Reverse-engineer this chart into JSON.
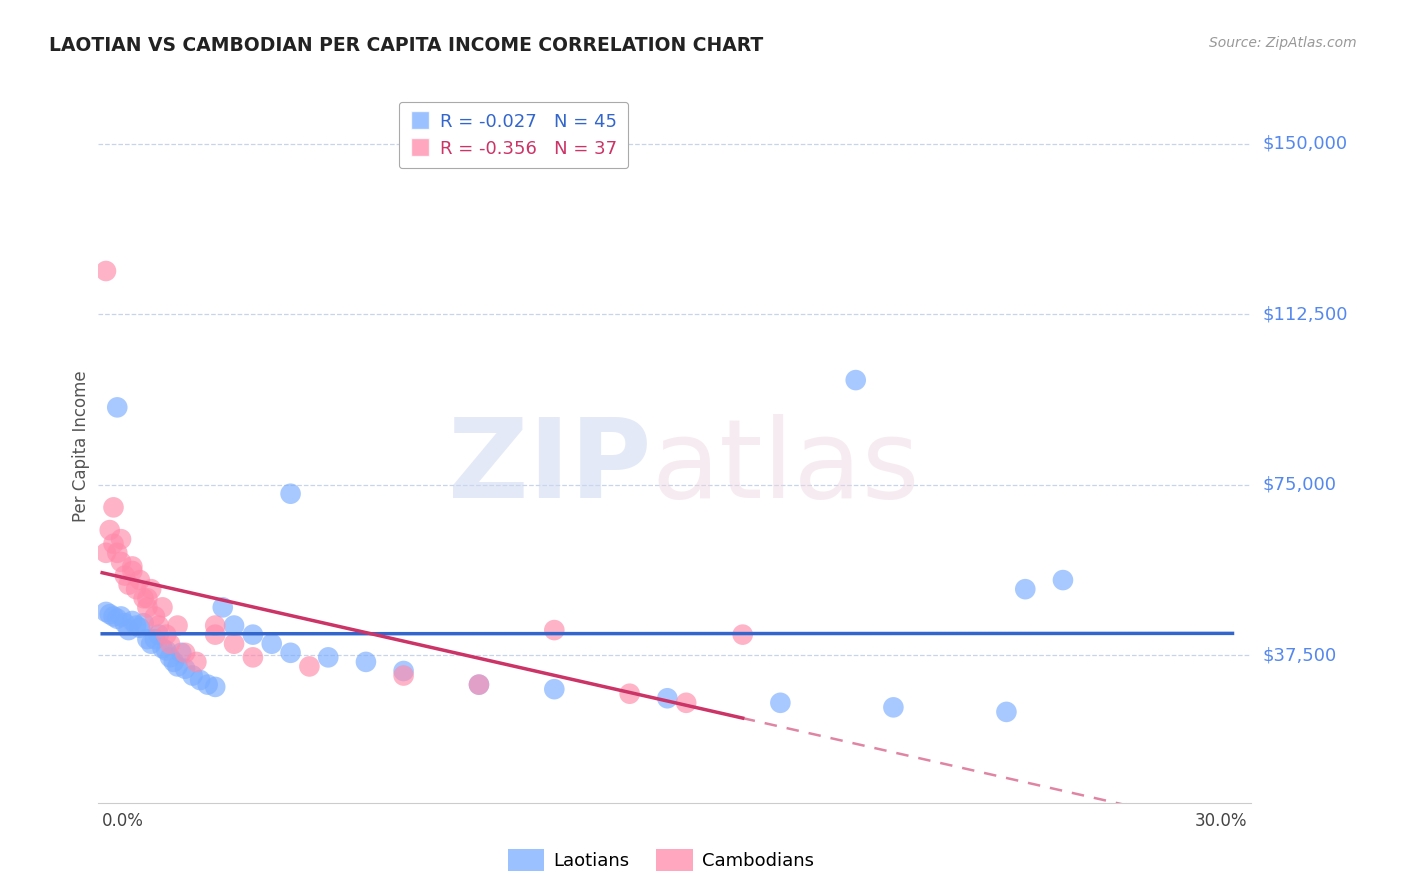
{
  "title": "LAOTIAN VS CAMBODIAN PER CAPITA INCOME CORRELATION CHART",
  "source": "Source: ZipAtlas.com",
  "ylabel": "Per Capita Income",
  "laotian_color": "#7aadff",
  "cambodian_color": "#ff8aaa",
  "laotian_R": -0.027,
  "laotian_N": 45,
  "cambodian_R": -0.356,
  "cambodian_N": 37,
  "laotian_line_color": "#3366cc",
  "cambodian_line_color": "#cc3366",
  "ymin": 5000,
  "ymax": 162000,
  "xmin": -0.001,
  "xmax": 0.305,
  "ytick_vals": [
    37500,
    75000,
    112500,
    150000
  ],
  "ytick_labels": [
    "$37,500",
    "$75,000",
    "$112,500",
    "$150,000"
  ],
  "lao_x": [
    0.001,
    0.002,
    0.003,
    0.004,
    0.005,
    0.006,
    0.007,
    0.008,
    0.009,
    0.01,
    0.011,
    0.012,
    0.013,
    0.014,
    0.015,
    0.016,
    0.017,
    0.018,
    0.019,
    0.02,
    0.021,
    0.022,
    0.024,
    0.026,
    0.028,
    0.03,
    0.032,
    0.035,
    0.04,
    0.045,
    0.05,
    0.06,
    0.07,
    0.08,
    0.1,
    0.12,
    0.15,
    0.18,
    0.21,
    0.24,
    0.004,
    0.05,
    0.2,
    0.245,
    0.255
  ],
  "lao_y": [
    47000,
    46500,
    46000,
    45500,
    46000,
    44500,
    43000,
    45000,
    44000,
    43500,
    44500,
    41000,
    40000,
    41000,
    42000,
    39000,
    38500,
    37000,
    36000,
    35000,
    38000,
    34500,
    33000,
    32000,
    31000,
    30500,
    48000,
    44000,
    42000,
    40000,
    38000,
    37000,
    36000,
    34000,
    31000,
    30000,
    28000,
    27000,
    26000,
    25000,
    92000,
    73000,
    98000,
    52000,
    54000
  ],
  "cam_x": [
    0.001,
    0.001,
    0.002,
    0.003,
    0.004,
    0.005,
    0.006,
    0.007,
    0.008,
    0.009,
    0.01,
    0.011,
    0.012,
    0.013,
    0.014,
    0.015,
    0.016,
    0.017,
    0.018,
    0.02,
    0.022,
    0.025,
    0.03,
    0.035,
    0.04,
    0.055,
    0.08,
    0.1,
    0.12,
    0.14,
    0.003,
    0.005,
    0.008,
    0.012,
    0.03,
    0.155,
    0.17
  ],
  "cam_y": [
    122000,
    60000,
    65000,
    62000,
    60000,
    58000,
    55000,
    53000,
    57000,
    52000,
    54000,
    50000,
    48000,
    52000,
    46000,
    44000,
    48000,
    42000,
    40000,
    44000,
    38000,
    36000,
    42000,
    40000,
    37000,
    35000,
    33000,
    31000,
    43000,
    29000,
    70000,
    63000,
    56000,
    50000,
    44000,
    27000,
    42000
  ]
}
